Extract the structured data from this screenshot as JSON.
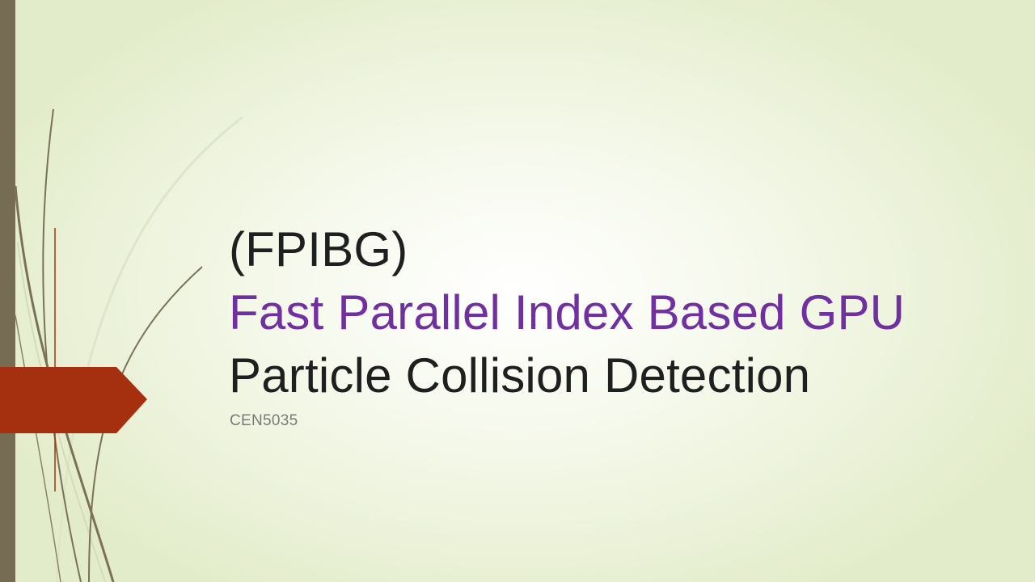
{
  "slide": {
    "title": {
      "line1": "(FPIBG)",
      "line2": "Fast Parallel Index Based GPU",
      "line3": "Particle Collision  Detection"
    },
    "subtitle": "CEN5035"
  },
  "colors": {
    "sidebar": "#756c53",
    "arrow": "#a5300f",
    "accent_text": "#7030a0",
    "curves": "#7a7256"
  }
}
